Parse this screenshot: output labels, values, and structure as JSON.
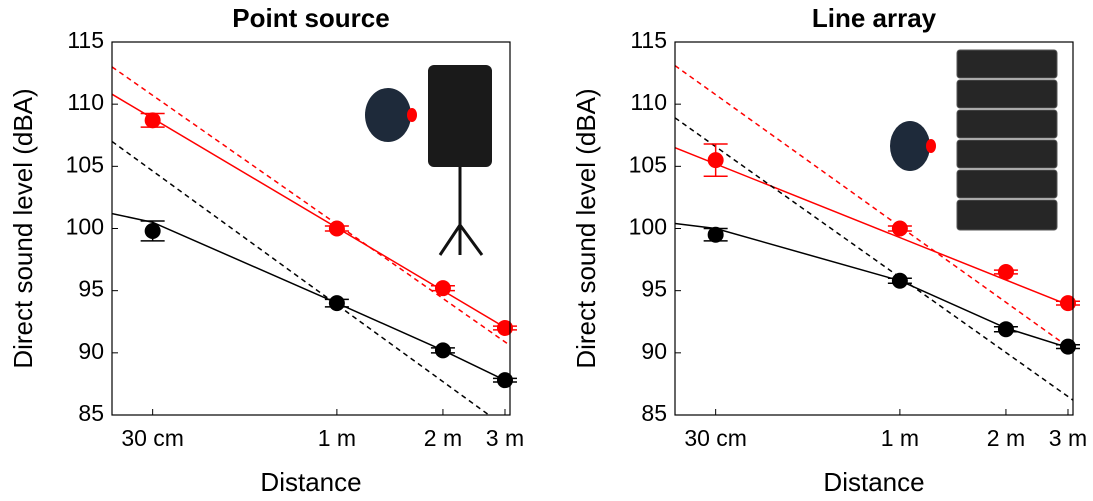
{
  "chart_data": [
    {
      "type": "scatter",
      "title": "Point source",
      "xlabel": "Distance",
      "ylabel": "Direct sound level (dBA)",
      "xscale": "log",
      "xlim": [
        0.23,
        3.1
      ],
      "ylim": [
        85,
        115
      ],
      "xticks": [
        {
          "value": 0.3,
          "label": "30 cm"
        },
        {
          "value": 1,
          "label": "1 m"
        },
        {
          "value": 2,
          "label": "2 m"
        },
        {
          "value": 3,
          "label": "3 m"
        }
      ],
      "yticks": [
        85,
        90,
        95,
        100,
        105,
        110,
        115
      ],
      "series": [
        {
          "style": "markers",
          "color": "#ff0000",
          "x": [
            0.3,
            1,
            2,
            3
          ],
          "values": [
            108.7,
            100.0,
            95.2,
            92.0
          ],
          "errors": [
            0.55,
            0.2,
            0.2,
            0.15
          ]
        },
        {
          "style": "markers",
          "color": "#000000",
          "x": [
            0.3,
            1,
            2,
            3
          ],
          "values": [
            99.8,
            94.0,
            90.2,
            87.8
          ],
          "errors": [
            0.8,
            0.3,
            0.2,
            0.15
          ]
        },
        {
          "style": "solid",
          "color": "#ff0000",
          "x": [
            0.23,
            3.1
          ],
          "values": [
            110.8,
            91.8
          ]
        },
        {
          "style": "dashed",
          "color": "#ff0000",
          "x": [
            0.23,
            3.1
          ],
          "values": [
            113.0,
            90.6
          ]
        },
        {
          "style": "solid",
          "color": "#000000",
          "x": [
            0.23,
            0.3,
            1,
            2,
            3.1
          ],
          "values": [
            101.2,
            100.5,
            94.0,
            90.2,
            87.6
          ]
        },
        {
          "style": "dashed",
          "color": "#000000",
          "x": [
            0.23,
            2.7
          ],
          "values": [
            107.0,
            85.0
          ]
        }
      ]
    },
    {
      "type": "scatter",
      "title": "Line array",
      "xlabel": "Distance",
      "ylabel": "Direct sound level (dBA)",
      "xscale": "log",
      "xlim": [
        0.23,
        3.1
      ],
      "ylim": [
        85,
        115
      ],
      "xticks": [
        {
          "value": 0.3,
          "label": "30 cm"
        },
        {
          "value": 1,
          "label": "1 m"
        },
        {
          "value": 2,
          "label": "2 m"
        },
        {
          "value": 3,
          "label": "3 m"
        }
      ],
      "yticks": [
        85,
        90,
        95,
        100,
        105,
        110,
        115
      ],
      "series": [
        {
          "style": "markers",
          "color": "#ff0000",
          "x": [
            0.3,
            1,
            2,
            3
          ],
          "values": [
            105.5,
            100.0,
            96.5,
            94.0
          ],
          "errors": [
            1.3,
            0.2,
            0.15,
            0.15
          ]
        },
        {
          "style": "markers",
          "color": "#000000",
          "x": [
            0.3,
            1,
            2,
            3
          ],
          "values": [
            99.5,
            95.8,
            91.9,
            90.5
          ],
          "errors": [
            0.5,
            0.2,
            0.2,
            0.15
          ]
        },
        {
          "style": "solid",
          "color": "#ff0000",
          "x": [
            0.23,
            3.1
          ],
          "values": [
            106.5,
            93.7
          ]
        },
        {
          "style": "dashed",
          "color": "#ff0000",
          "x": [
            0.23,
            3.1
          ],
          "values": [
            113.1,
            90.2
          ]
        },
        {
          "style": "solid",
          "color": "#000000",
          "x": [
            0.23,
            0.3,
            1,
            2,
            3.1
          ],
          "values": [
            100.4,
            100.0,
            95.8,
            92.0,
            90.3
          ]
        },
        {
          "style": "dashed",
          "color": "#000000",
          "x": [
            0.23,
            3.1
          ],
          "values": [
            108.9,
            86.2
          ]
        }
      ]
    }
  ]
}
